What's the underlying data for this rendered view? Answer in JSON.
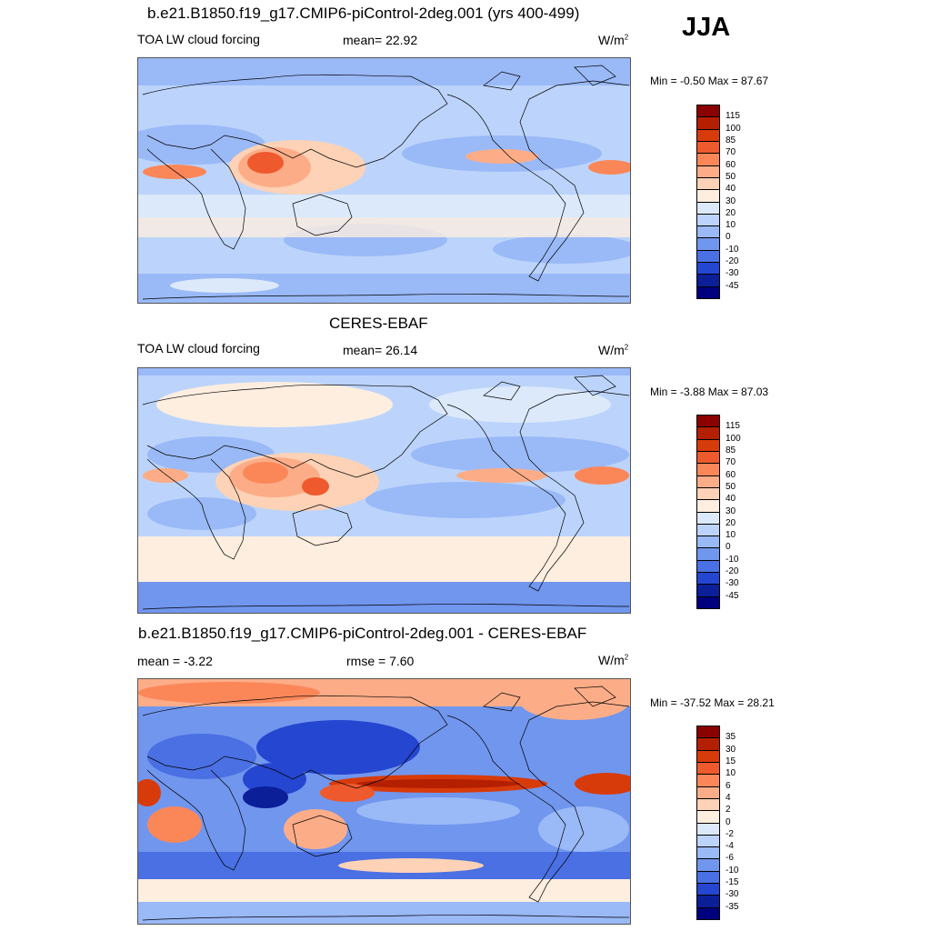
{
  "season": "JJA",
  "panels": [
    {
      "id": "model",
      "title": "b.e21.B1850.f19_g17.CMIP6-piControl-2deg.001 (yrs 400-499)",
      "left_label": "TOA LW cloud forcing",
      "center_label": "mean=  22.92",
      "units": "W/m",
      "units_sup": "2",
      "minmax": "Min =  -0.50 Max =  87.67",
      "levels": [
        "115",
        "100",
        "85",
        "70",
        "60",
        "50",
        "40",
        "30",
        "20",
        "10",
        "0",
        "-10",
        "-20",
        "-30",
        "-45"
      ],
      "colors": [
        "#8b0000",
        "#b41f00",
        "#d83b0a",
        "#ee5a2d",
        "#fb8759",
        "#fcad88",
        "#fdd2b6",
        "#fdeee0",
        "#dbe9fb",
        "#bcd4fb",
        "#9ab9f7",
        "#7196ee",
        "#4a70e3",
        "#2546d0",
        "#0b1f99",
        "#00007f"
      ]
    },
    {
      "id": "obs",
      "title": "CERES-EBAF",
      "left_label": "TOA LW cloud forcing",
      "center_label": "mean=  26.14",
      "units": "W/m",
      "units_sup": "2",
      "minmax": "Min =  -3.88 Max =  87.03",
      "levels": [
        "115",
        "100",
        "85",
        "70",
        "60",
        "50",
        "40",
        "30",
        "20",
        "10",
        "0",
        "-10",
        "-20",
        "-30",
        "-45"
      ],
      "colors": [
        "#8b0000",
        "#b41f00",
        "#d83b0a",
        "#ee5a2d",
        "#fb8759",
        "#fcad88",
        "#fdd2b6",
        "#fdeee0",
        "#dbe9fb",
        "#bcd4fb",
        "#9ab9f7",
        "#7196ee",
        "#4a70e3",
        "#2546d0",
        "#0b1f99",
        "#00007f"
      ]
    },
    {
      "id": "diff",
      "title": "b.e21.B1850.f19_g17.CMIP6-piControl-2deg.001 - CERES-EBAF",
      "left_label": "mean =  -3.22",
      "center_label": "rmse =   7.60",
      "units": "W/m",
      "units_sup": "2",
      "minmax": "Min = -37.52 Max =  28.21",
      "levels": [
        "35",
        "30",
        "15",
        "10",
        "6",
        "4",
        "2",
        "0",
        "-2",
        "-4",
        "-6",
        "-10",
        "-15",
        "-30",
        "-35"
      ],
      "colors": [
        "#8b0000",
        "#b41f00",
        "#d83b0a",
        "#ee5a2d",
        "#fb8759",
        "#fcad88",
        "#fdd2b6",
        "#fdeee0",
        "#dbe9fb",
        "#bcd4fb",
        "#9ab9f7",
        "#7196ee",
        "#4a70e3",
        "#2546d0",
        "#0b1f99",
        "#00007f"
      ]
    }
  ]
}
